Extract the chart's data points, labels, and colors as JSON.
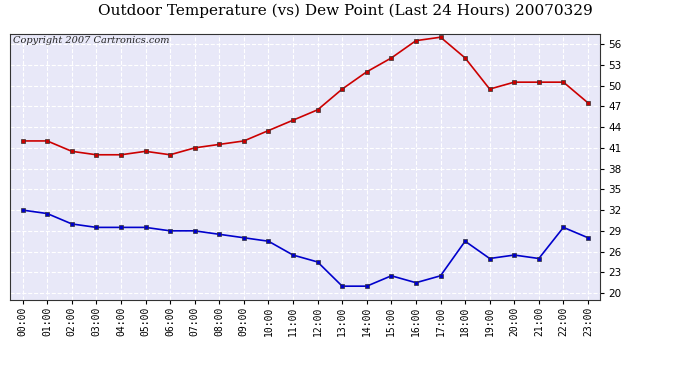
{
  "title": "Outdoor Temperature (vs) Dew Point (Last 24 Hours) 20070329",
  "copyright_text": "Copyright 2007 Cartronics.com",
  "x_labels": [
    "00:00",
    "01:00",
    "02:00",
    "03:00",
    "04:00",
    "05:00",
    "06:00",
    "07:00",
    "08:00",
    "09:00",
    "10:00",
    "11:00",
    "12:00",
    "13:00",
    "14:00",
    "15:00",
    "16:00",
    "17:00",
    "18:00",
    "19:00",
    "20:00",
    "21:00",
    "22:00",
    "23:00"
  ],
  "temp_data": [
    42.0,
    42.0,
    40.5,
    40.0,
    40.0,
    40.5,
    40.0,
    41.0,
    41.5,
    42.0,
    43.5,
    45.0,
    46.5,
    49.5,
    52.0,
    54.0,
    56.5,
    57.0,
    54.0,
    49.5,
    50.5,
    50.5,
    50.5,
    47.5
  ],
  "dew_data": [
    32.0,
    31.5,
    30.0,
    29.5,
    29.5,
    29.5,
    29.0,
    29.0,
    28.5,
    28.0,
    27.5,
    25.5,
    24.5,
    21.0,
    21.0,
    22.5,
    21.5,
    22.5,
    27.5,
    25.0,
    25.5,
    25.0,
    29.5,
    28.0
  ],
  "temp_color": "#cc0000",
  "dew_color": "#0000cc",
  "bg_color": "#ffffff",
  "plot_bg_color": "#e8e8f8",
  "grid_color": "#ffffff",
  "grid_linestyle": "--",
  "ylim_min": 19.0,
  "ylim_max": 57.5,
  "yticks": [
    20.0,
    23.0,
    26.0,
    29.0,
    32.0,
    35.0,
    38.0,
    41.0,
    44.0,
    47.0,
    50.0,
    53.0,
    56.0
  ],
  "title_fontsize": 11,
  "copyright_fontsize": 7,
  "marker": "s",
  "markersize": 3,
  "linewidth": 1.2
}
